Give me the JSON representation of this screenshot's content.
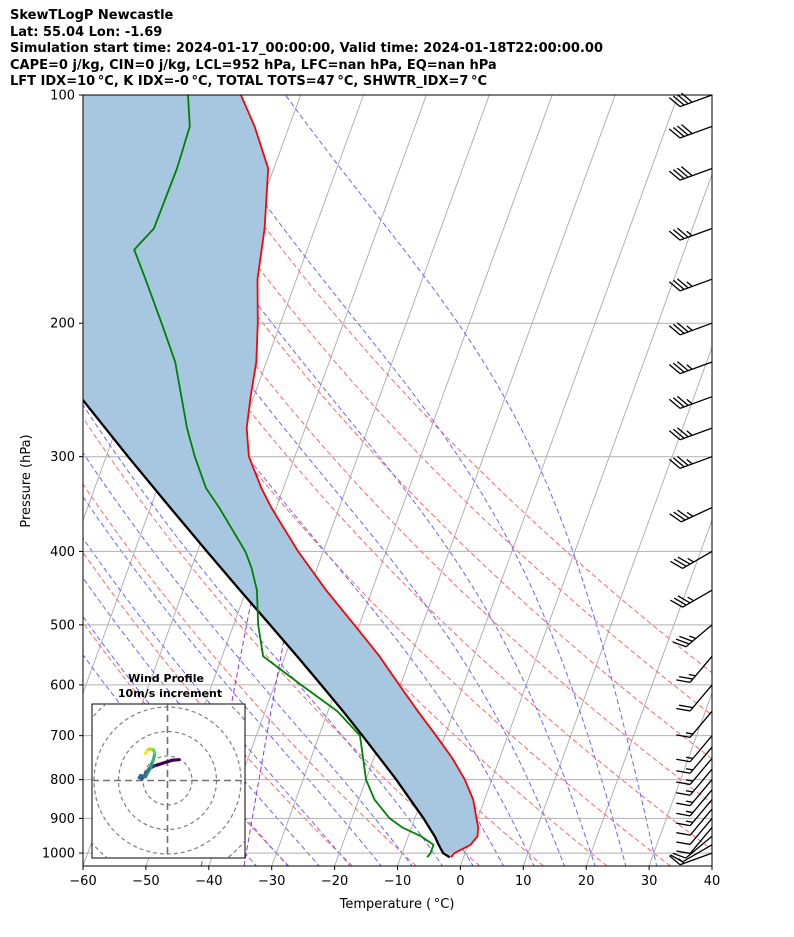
{
  "header": {
    "line1": "SkewTLogP Newcastle",
    "line2": "Lat: 55.04   Lon: -1.69",
    "line3": "Simulation start time: 2024-01-17_00:00:00, Valid time: 2024-01-18T22:00:00.00",
    "line4": "CAPE=0 j/kg, CIN=0 j/kg, LCL=952 hPa, LFC=nan hPa, EQ=nan hPa",
    "line5": "LFT IDX=10 °C, K IDX=-0 °C, TOTAL TOTS=47 °C, SHWTR_IDX=7 °C"
  },
  "colors": {
    "temperature": "#ff0000",
    "dewpoint": "#008000",
    "parcel": "#000000",
    "cape_fill": "#a6c7df",
    "dry_adiabat": "#ff6666",
    "moist_adiabat": "#6666ff",
    "mixing_ratio": "#9933cc",
    "isotherm": "#aaaaaa"
  },
  "chart_data": {
    "type": "line",
    "xlabel": "Temperature ( °C)",
    "ylabel": "Pressure (hPa)",
    "xlim": [
      -60,
      40
    ],
    "ylim": [
      1040,
      100
    ],
    "y_scale": "log",
    "skew": "skew-T log-P",
    "grid": true,
    "x_ticks": [
      -60,
      -50,
      -40,
      -30,
      -20,
      -10,
      0,
      10,
      20,
      30,
      40
    ],
    "x_tick_labels": [
      "−60",
      "−50",
      "−40",
      "−30",
      "−20",
      "−10",
      "0",
      "10",
      "20",
      "30",
      "40"
    ],
    "y_ticks": [
      100,
      200,
      300,
      400,
      500,
      600,
      700,
      800,
      900,
      1000
    ],
    "y_tick_labels": [
      "100",
      "200",
      "300",
      "400",
      "500",
      "600",
      "700",
      "800",
      "900",
      "1000"
    ],
    "series": [
      {
        "key": "temperature",
        "p": [
          1013,
          1000,
          975,
          950,
          925,
          900,
          850,
          800,
          750,
          700,
          650,
          600,
          550,
          500,
          450,
          400,
          370,
          350,
          330,
          300,
          275,
          250,
          225,
          200,
          175,
          150,
          125,
          110,
          100
        ],
        "t": [
          -2,
          -1.7,
          0.4,
          1,
          0.6,
          -0.2,
          -1.8,
          -4.3,
          -7.5,
          -11.4,
          -15.7,
          -20.2,
          -25,
          -30.8,
          -37.3,
          -44,
          -48,
          -50.8,
          -53.5,
          -57.3,
          -59.3,
          -60.5,
          -61.6,
          -63.6,
          -66.2,
          -68,
          -70.9,
          -75.5,
          -79.5
        ]
      },
      {
        "key": "dewpoint",
        "p": [
          1013,
          1000,
          975,
          950,
          925,
          900,
          850,
          800,
          750,
          700,
          650,
          600,
          550,
          500,
          450,
          420,
          400,
          350,
          330,
          300,
          275,
          250,
          225,
          200,
          175,
          160,
          150,
          125,
          110,
          100
        ],
        "t": [
          -5.8,
          -5.5,
          -5.5,
          -8,
          -11.5,
          -14,
          -17.5,
          -20,
          -21.7,
          -23.5,
          -28.5,
          -35.8,
          -43.5,
          -46.1,
          -48.3,
          -50.5,
          -52.4,
          -59.1,
          -62.3,
          -65.9,
          -68.8,
          -71.5,
          -74.5,
          -78.9,
          -84,
          -87.5,
          -85.6,
          -85.4,
          -85.8,
          -87.9
        ]
      },
      {
        "key": "parcel",
        "p": [
          1013,
          1000,
          975,
          952,
          925,
          900,
          850,
          800,
          750,
          700,
          650,
          600,
          550,
          500,
          450,
          400,
          350,
          300,
          250,
          200,
          150,
          125,
          100
        ],
        "t": [
          -2.2,
          -3.5,
          -4.7,
          -5.7,
          -7.2,
          -8.6,
          -11.8,
          -15.2,
          -19.0,
          -23.1,
          -27.6,
          -32.6,
          -38.1,
          -44.2,
          -51.0,
          -58.5,
          -66.9,
          -76.5,
          -87.6,
          -100.9,
          -117.3,
          -127.1,
          -138.7
        ]
      }
    ],
    "wind_barbs": {
      "p": [
        1000,
        975,
        950,
        925,
        900,
        875,
        850,
        825,
        800,
        775,
        750,
        725,
        700,
        650,
        600,
        550,
        500,
        450,
        400,
        350,
        300,
        275,
        250,
        225,
        200,
        175,
        150,
        125,
        110,
        100
      ],
      "speed_kt": [
        15,
        10,
        10,
        10,
        10,
        10,
        15,
        15,
        15,
        15,
        15,
        15,
        15,
        15,
        20,
        25,
        35,
        35,
        35,
        35,
        35,
        35,
        35,
        35,
        35,
        35,
        35,
        40,
        40,
        40
      ],
      "dir_deg": [
        290,
        300,
        310,
        320,
        320,
        320,
        320,
        320,
        320,
        320,
        320,
        320,
        320,
        320,
        320,
        320,
        310,
        300,
        300,
        295,
        290,
        290,
        290,
        290,
        290,
        290,
        290,
        290,
        290,
        290
      ]
    },
    "hodograph": {
      "title_line1": "Wind Profile",
      "title_line2": "10m/s increment",
      "ring_increment_ms": 10,
      "u": [
        4.8,
        2.0,
        -5.3,
        -7.5,
        -9.0,
        -10.5,
        -11.5,
        -11.0,
        -9.0,
        -8.0,
        -6.8,
        -6.5,
        -6.0,
        -5.5,
        -5.2,
        -5.7,
        -6.7,
        -7.7,
        -8.4,
        -9.1
      ],
      "v": [
        8.5,
        8.3,
        6.0,
        4.8,
        2.5,
        0.8,
        1.2,
        2.0,
        1.5,
        3.5,
        5.5,
        6.8,
        7.8,
        9.5,
        11.3,
        12.4,
        12.8,
        12.7,
        12.1,
        10.9
      ]
    },
    "background_lines": {
      "isotherm_step": 10,
      "dry_adiabat_theta_C": [
        -30,
        -20,
        -10,
        0,
        10,
        20,
        30,
        40,
        50,
        60,
        70,
        80
      ],
      "moist_adiabat_Tsurf_C": [
        -35,
        -30,
        -25,
        -20,
        -15,
        -10,
        -5,
        0,
        5,
        10,
        15,
        20,
        25,
        30
      ],
      "mixing_ratio_gkg": [
        0.1,
        0.2
      ]
    }
  }
}
